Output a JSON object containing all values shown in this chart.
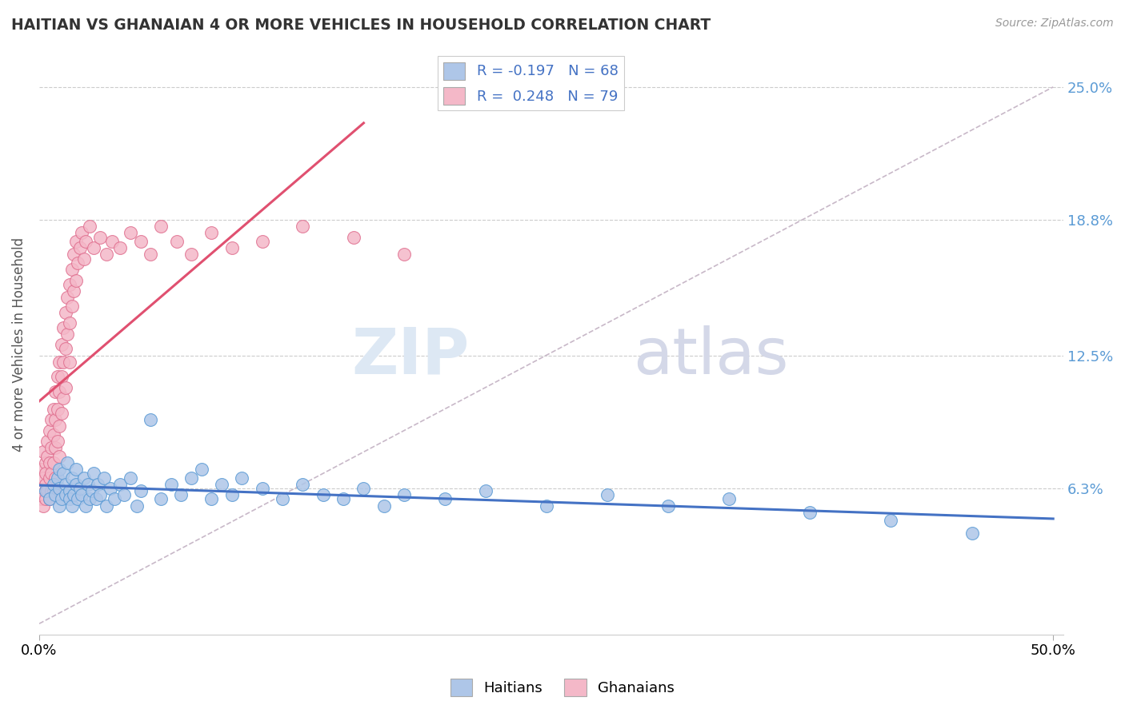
{
  "title": "HAITIAN VS GHANAIAN 4 OR MORE VEHICLES IN HOUSEHOLD CORRELATION CHART",
  "source": "Source: ZipAtlas.com",
  "ylabel": "4 or more Vehicles in Household",
  "y_ticks": [
    "6.3%",
    "12.5%",
    "18.8%",
    "25.0%"
  ],
  "y_tick_vals": [
    0.063,
    0.125,
    0.188,
    0.25
  ],
  "x_min": 0.0,
  "x_max": 0.5,
  "y_min": -0.005,
  "y_max": 0.265,
  "legend_haitian_label": "R = -0.197   N = 68",
  "legend_ghanaian_label": "R =  0.248   N = 79",
  "haitians_color": "#aec6e8",
  "ghanaians_color": "#f4b8c8",
  "haitians_edge_color": "#5b9bd5",
  "ghanaians_edge_color": "#e07090",
  "haitians_line_color": "#4472c4",
  "ghanaians_line_color": "#e05070",
  "diagonal_line_color": "#c8b8c8",
  "watermark_zip": "ZIP",
  "watermark_atlas": "atlas",
  "haitian_scatter_x": [
    0.003,
    0.005,
    0.007,
    0.008,
    0.009,
    0.01,
    0.01,
    0.01,
    0.011,
    0.012,
    0.013,
    0.013,
    0.014,
    0.015,
    0.015,
    0.016,
    0.016,
    0.017,
    0.018,
    0.018,
    0.019,
    0.02,
    0.021,
    0.022,
    0.023,
    0.024,
    0.025,
    0.026,
    0.027,
    0.028,
    0.029,
    0.03,
    0.032,
    0.033,
    0.035,
    0.037,
    0.04,
    0.042,
    0.045,
    0.048,
    0.05,
    0.055,
    0.06,
    0.065,
    0.07,
    0.075,
    0.08,
    0.085,
    0.09,
    0.095,
    0.1,
    0.11,
    0.12,
    0.13,
    0.14,
    0.15,
    0.16,
    0.17,
    0.18,
    0.2,
    0.22,
    0.25,
    0.28,
    0.31,
    0.34,
    0.38,
    0.42,
    0.46
  ],
  "haitian_scatter_y": [
    0.062,
    0.058,
    0.065,
    0.06,
    0.068,
    0.072,
    0.055,
    0.063,
    0.058,
    0.07,
    0.065,
    0.06,
    0.075,
    0.062,
    0.058,
    0.068,
    0.055,
    0.06,
    0.065,
    0.072,
    0.058,
    0.063,
    0.06,
    0.068,
    0.055,
    0.065,
    0.058,
    0.062,
    0.07,
    0.058,
    0.065,
    0.06,
    0.068,
    0.055,
    0.063,
    0.058,
    0.065,
    0.06,
    0.068,
    0.055,
    0.062,
    0.095,
    0.058,
    0.065,
    0.06,
    0.068,
    0.072,
    0.058,
    0.065,
    0.06,
    0.068,
    0.063,
    0.058,
    0.065,
    0.06,
    0.058,
    0.063,
    0.055,
    0.06,
    0.058,
    0.062,
    0.055,
    0.06,
    0.055,
    0.058,
    0.052,
    0.048,
    0.042
  ],
  "ghanaian_scatter_x": [
    0.0,
    0.001,
    0.001,
    0.002,
    0.002,
    0.002,
    0.003,
    0.003,
    0.003,
    0.003,
    0.004,
    0.004,
    0.004,
    0.005,
    0.005,
    0.005,
    0.005,
    0.006,
    0.006,
    0.006,
    0.006,
    0.007,
    0.007,
    0.007,
    0.007,
    0.008,
    0.008,
    0.008,
    0.008,
    0.009,
    0.009,
    0.009,
    0.01,
    0.01,
    0.01,
    0.01,
    0.011,
    0.011,
    0.011,
    0.012,
    0.012,
    0.012,
    0.013,
    0.013,
    0.013,
    0.014,
    0.014,
    0.015,
    0.015,
    0.015,
    0.016,
    0.016,
    0.017,
    0.017,
    0.018,
    0.018,
    0.019,
    0.02,
    0.021,
    0.022,
    0.023,
    0.025,
    0.027,
    0.03,
    0.033,
    0.036,
    0.04,
    0.045,
    0.05,
    0.055,
    0.06,
    0.068,
    0.075,
    0.085,
    0.095,
    0.11,
    0.13,
    0.155,
    0.18
  ],
  "ghanaian_scatter_y": [
    0.06,
    0.058,
    0.072,
    0.055,
    0.068,
    0.08,
    0.065,
    0.075,
    0.058,
    0.07,
    0.085,
    0.078,
    0.062,
    0.09,
    0.068,
    0.075,
    0.058,
    0.095,
    0.082,
    0.07,
    0.062,
    0.1,
    0.088,
    0.075,
    0.062,
    0.108,
    0.095,
    0.082,
    0.068,
    0.115,
    0.1,
    0.085,
    0.122,
    0.108,
    0.092,
    0.078,
    0.13,
    0.115,
    0.098,
    0.138,
    0.122,
    0.105,
    0.145,
    0.128,
    0.11,
    0.152,
    0.135,
    0.158,
    0.14,
    0.122,
    0.165,
    0.148,
    0.172,
    0.155,
    0.178,
    0.16,
    0.168,
    0.175,
    0.182,
    0.17,
    0.178,
    0.185,
    0.175,
    0.18,
    0.172,
    0.178,
    0.175,
    0.182,
    0.178,
    0.172,
    0.185,
    0.178,
    0.172,
    0.182,
    0.175,
    0.178,
    0.185,
    0.18,
    0.172
  ]
}
